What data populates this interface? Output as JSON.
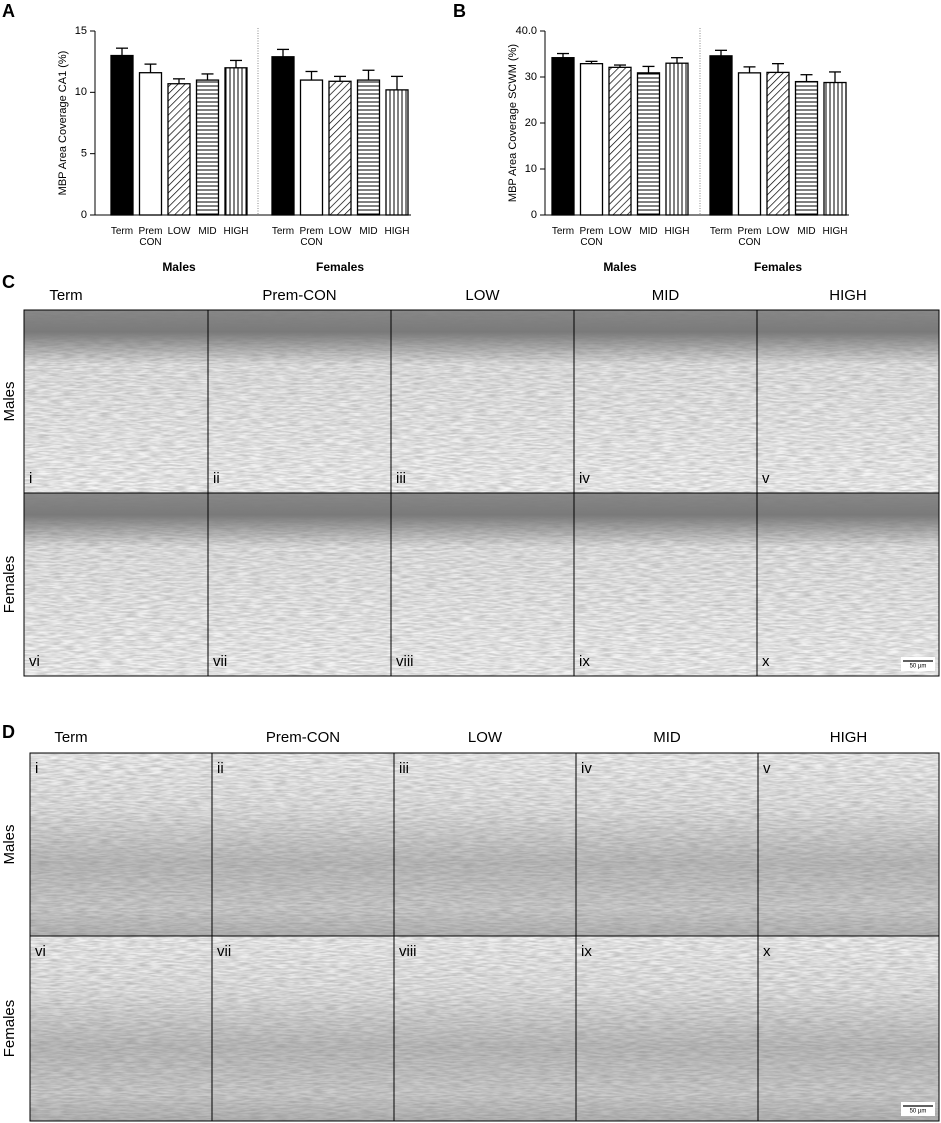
{
  "chart_data": [
    {
      "type": "bar",
      "panel": "A",
      "ylabel": "MBP Area Coverage CA1 (%)",
      "categories": [
        "Term",
        "Prem CON",
        "LOW",
        "MID",
        "HIGH"
      ],
      "patterns": [
        "solid",
        "none",
        "diagonal",
        "horizontal",
        "vertical"
      ],
      "groups": [
        {
          "name": "Males",
          "values": [
            13.0,
            11.6,
            10.7,
            11.0,
            12.0
          ],
          "errors": [
            0.6,
            0.7,
            0.4,
            0.5,
            0.6
          ]
        },
        {
          "name": "Females",
          "values": [
            12.9,
            11.0,
            10.9,
            11.0,
            10.2
          ],
          "errors": [
            0.6,
            0.7,
            0.4,
            0.8,
            1.1
          ]
        }
      ],
      "ylim": [
        0,
        15
      ],
      "yticks": [
        0,
        5,
        10,
        15
      ]
    },
    {
      "type": "bar",
      "panel": "B",
      "ylabel": "MBP Area Coverage SCWM (%)",
      "categories": [
        "Term",
        "Prem CON",
        "LOW",
        "MID",
        "HIGH"
      ],
      "patterns": [
        "solid",
        "none",
        "diagonal",
        "horizontal",
        "vertical"
      ],
      "groups": [
        {
          "name": "Males",
          "values": [
            34.2,
            32.9,
            32.1,
            30.9,
            33.0
          ],
          "errors": [
            0.9,
            0.5,
            0.5,
            1.4,
            1.2
          ]
        },
        {
          "name": "Females",
          "values": [
            34.6,
            30.9,
            31.0,
            29.0,
            28.8
          ],
          "errors": [
            1.2,
            1.3,
            1.9,
            1.5,
            2.3
          ]
        }
      ],
      "ylim": [
        0,
        40
      ],
      "yticks": [
        0,
        10,
        20,
        30,
        {
          "value": 40,
          "label": "40.0"
        }
      ]
    }
  ],
  "image_grids": [
    {
      "panel": "C",
      "columns": [
        "Term",
        "Prem-CON",
        "LOW",
        "MID",
        "HIGH"
      ],
      "rows": [
        "Males",
        "Females"
      ],
      "panel_labels": [
        [
          "i",
          "ii",
          "iii",
          "iv",
          "v"
        ],
        [
          "vi",
          "vii",
          "viii",
          "ix",
          "x"
        ]
      ],
      "scale_bar": "50 µm"
    },
    {
      "panel": "D",
      "columns": [
        "Term",
        "Prem-CON",
        "LOW",
        "MID",
        "HIGH"
      ],
      "rows": [
        "Males",
        "Females"
      ],
      "panel_labels": [
        [
          "i",
          "ii",
          "iii",
          "iv",
          "v"
        ],
        [
          "vi",
          "vii",
          "viii",
          "ix",
          "x"
        ]
      ],
      "scale_bar": "50 µm"
    }
  ]
}
